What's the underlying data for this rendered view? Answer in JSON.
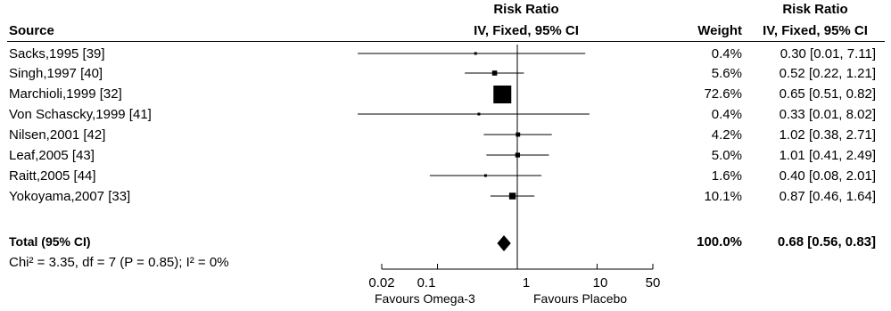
{
  "headers": {
    "source": "Source",
    "plot_title": "Risk Ratio",
    "plot_subtitle": "IV, Fixed, 95% CI",
    "weight": "Weight",
    "ci_title": "Risk Ratio",
    "ci_subtitle": "IV, Fixed, 95% CI"
  },
  "studies": [
    {
      "source": "Sacks,1995 [39]",
      "weight": "0.4%",
      "ci_text": "0.30 [0.01, 7.11]"
    },
    {
      "source": "Singh,1997 [40]",
      "weight": "5.6%",
      "ci_text": "0.52 [0.22, 1.21]"
    },
    {
      "source": "Marchioli,1999 [32]",
      "weight": "72.6%",
      "ci_text": "0.65 [0.51, 0.82]"
    },
    {
      "source": "Von Schascky,1999 [41]",
      "weight": "0.4%",
      "ci_text": "0.33 [0.01, 8.02]"
    },
    {
      "source": "Nilsen,2001 [42]",
      "weight": "4.2%",
      "ci_text": "1.02 [0.38, 2.71]"
    },
    {
      "source": "Leaf,2005 [43]",
      "weight": "5.0%",
      "ci_text": "1.01 [0.41, 2.49]"
    },
    {
      "source": "Raitt,2005 [44]",
      "weight": "1.6%",
      "ci_text": "0.40 [0.08, 2.01]"
    },
    {
      "source": "Yokoyama,2007 [33]",
      "weight": "10.1%",
      "ci_text": "0.87 [0.46, 1.64]"
    }
  ],
  "total": {
    "label": "Total (95% CI)",
    "weight": "100.0%",
    "ci_text": "0.68 [0.56, 0.83]"
  },
  "heterogeneity": "Chi² = 3.35, df = 7 (P = 0.85); I² = 0%",
  "axis": {
    "ticks": [
      "0.02",
      "0.1",
      "1",
      "10",
      "50"
    ],
    "favours_left": "Favours Omega-3",
    "favours_right": "Favours Placebo"
  },
  "chart_data": {
    "type": "forest",
    "scale": "log",
    "xlim": [
      0.02,
      50
    ],
    "ticks": [
      0.02,
      0.1,
      1,
      10,
      50
    ],
    "null_line": 1,
    "studies": [
      {
        "name": "Sacks,1995 [39]",
        "rr": 0.3,
        "lower": 0.01,
        "upper": 7.11,
        "weight": 0.4
      },
      {
        "name": "Singh,1997 [40]",
        "rr": 0.52,
        "lower": 0.22,
        "upper": 1.21,
        "weight": 5.6
      },
      {
        "name": "Marchioli,1999 [32]",
        "rr": 0.65,
        "lower": 0.51,
        "upper": 0.82,
        "weight": 72.6
      },
      {
        "name": "Von Schascky,1999 [41]",
        "rr": 0.33,
        "lower": 0.01,
        "upper": 8.02,
        "weight": 0.4
      },
      {
        "name": "Nilsen,2001 [42]",
        "rr": 1.02,
        "lower": 0.38,
        "upper": 2.71,
        "weight": 4.2
      },
      {
        "name": "Leaf,2005 [43]",
        "rr": 1.01,
        "lower": 0.41,
        "upper": 2.49,
        "weight": 5.0
      },
      {
        "name": "Raitt,2005 [44]",
        "rr": 0.4,
        "lower": 0.08,
        "upper": 2.01,
        "weight": 1.6
      },
      {
        "name": "Yokoyama,2007 [33]",
        "rr": 0.87,
        "lower": 0.46,
        "upper": 1.64,
        "weight": 10.1
      }
    ],
    "total": {
      "rr": 0.68,
      "lower": 0.56,
      "upper": 0.83,
      "weight": 100.0
    }
  }
}
